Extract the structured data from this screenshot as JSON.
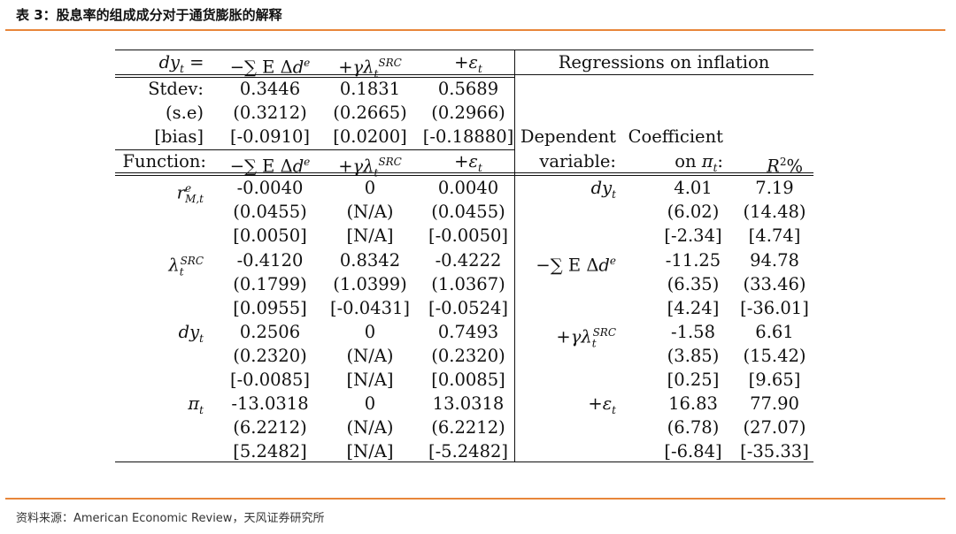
{
  "caption": "表 3：股息率的组成成分对于通货膨胀的解释",
  "source": "资料来源：American Economic Review，天风证券研究所",
  "colors": {
    "accent_rule": "#E8863A"
  },
  "header": {
    "col0": "dy_t =",
    "col1": "−∑ E Δd^e",
    "col2": "+γλ_t^SRC",
    "col3": "+ε_t",
    "right": "Regressions on inflation"
  },
  "stats": [
    {
      "label": "Stdev:",
      "v1": "0.3446",
      "v2": "0.1831",
      "v3": "0.5689"
    },
    {
      "label": "(s.e)",
      "v1": "(0.3212)",
      "v2": "(0.2665)",
      "v3": "(0.2966)"
    },
    {
      "label": "[bias]",
      "v1": "[-0.0910]",
      "v2": "[0.0200]",
      "v3": "[-0.18880]"
    }
  ],
  "sub_header": {
    "col0": "Function:",
    "col1": "−∑ E Δd^e",
    "col2": "+γλ_t^SRC",
    "col3": "+ε_t",
    "dep_line1": "Dependent",
    "dep_line2": "variable:",
    "coef_line1": "Coefficient",
    "coef_line2": "on π_t:",
    "r2": "R²%"
  },
  "left_blocks": [
    {
      "label": "r^e_{M,t}",
      "rows": [
        [
          "-0.0040",
          "0",
          "0.0040"
        ],
        [
          "(0.0455)",
          "(N/A)",
          "(0.0455)"
        ],
        [
          "[0.0050]",
          "[N/A]",
          "[-0.0050]"
        ]
      ]
    },
    {
      "label": "λ_t^SRC",
      "rows": [
        [
          "-0.4120",
          "0.8342",
          "-0.4222"
        ],
        [
          "(0.1799)",
          "(1.0399)",
          "(1.0367)"
        ],
        [
          "[0.0955]",
          "[-0.0431]",
          "[-0.0524]"
        ]
      ]
    },
    {
      "label": "dy_t",
      "rows": [
        [
          "0.2506",
          "0",
          "0.7493"
        ],
        [
          "(0.2320)",
          "(N/A)",
          "(0.2320)"
        ],
        [
          "[-0.0085]",
          "[N/A]",
          "[0.0085]"
        ]
      ]
    },
    {
      "label": "π_t",
      "rows": [
        [
          "-13.0318",
          "0",
          "13.0318"
        ],
        [
          "(6.2212)",
          "(N/A)",
          "(6.2212)"
        ],
        [
          "[5.2482]",
          "[N/A]",
          "[-5.2482]"
        ]
      ]
    }
  ],
  "right_blocks": [
    {
      "dep": "dy_t",
      "rows": [
        [
          "4.01",
          "7.19"
        ],
        [
          "(6.02)",
          "(14.48)"
        ],
        [
          "[-2.34]",
          "[4.74]"
        ]
      ]
    },
    {
      "dep": "−∑ E Δd^e",
      "rows": [
        [
          "-11.25",
          "94.78"
        ],
        [
          "(6.35)",
          "(33.46)"
        ],
        [
          "[4.24]",
          "[-36.01]"
        ]
      ]
    },
    {
      "dep": "+γλ_t^SRC",
      "rows": [
        [
          "-1.58",
          "6.61"
        ],
        [
          "(3.85)",
          "(15.42)"
        ],
        [
          "[0.25]",
          "[9.65]"
        ]
      ]
    },
    {
      "dep": "+ε_t",
      "rows": [
        [
          "16.83",
          "77.90"
        ],
        [
          "(6.78)",
          "(27.07)"
        ],
        [
          "[-6.84]",
          "[-35.33]"
        ]
      ]
    }
  ]
}
